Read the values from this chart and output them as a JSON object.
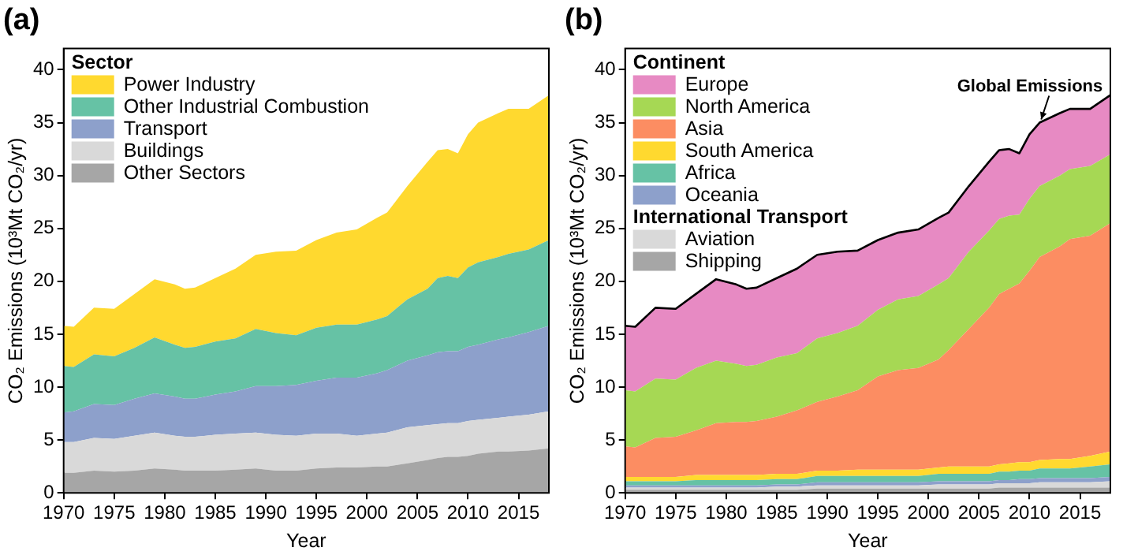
{
  "chart_data": [
    {
      "type": "area",
      "title": "(a)",
      "xlabel": "Year",
      "ylabel": "CO₂ Emissions (10³Mt CO₂/yr)",
      "legend_title": "Sector",
      "stacked": true,
      "legend": "top left",
      "grid": false,
      "x": [
        1970,
        1971,
        1973,
        1975,
        1977,
        1979,
        1981,
        1982,
        1983,
        1985,
        1987,
        1989,
        1991,
        1993,
        1995,
        1997,
        1999,
        2001,
        2002,
        2004,
        2006,
        2007,
        2008,
        2009,
        2010,
        2011,
        2013,
        2014,
        2016,
        2018
      ],
      "xlim": [
        1970,
        2018
      ],
      "xticks": [
        1970,
        1975,
        1980,
        1985,
        1990,
        1995,
        2000,
        2005,
        2010,
        2015
      ],
      "ylim": [
        0,
        42
      ],
      "yticks": [
        0,
        5,
        10,
        15,
        20,
        25,
        30,
        35,
        40
      ],
      "series": [
        {
          "name": "Other Sectors",
          "color": "#a6a6a6",
          "values": [
            1.9,
            1.9,
            2.1,
            2.0,
            2.1,
            2.3,
            2.2,
            2.1,
            2.1,
            2.1,
            2.2,
            2.3,
            2.1,
            2.1,
            2.3,
            2.4,
            2.4,
            2.5,
            2.5,
            2.8,
            3.1,
            3.3,
            3.4,
            3.4,
            3.5,
            3.7,
            3.9,
            3.9,
            4.0,
            4.2
          ]
        },
        {
          "name": "Buildings",
          "color": "#d9d9d9",
          "values": [
            2.9,
            2.9,
            3.1,
            3.1,
            3.3,
            3.4,
            3.2,
            3.2,
            3.2,
            3.4,
            3.4,
            3.4,
            3.4,
            3.3,
            3.3,
            3.2,
            3.0,
            3.1,
            3.2,
            3.4,
            3.3,
            3.2,
            3.2,
            3.2,
            3.3,
            3.2,
            3.2,
            3.3,
            3.4,
            3.5
          ]
        },
        {
          "name": "Transport",
          "color": "#8da0cb",
          "values": [
            2.8,
            2.9,
            3.2,
            3.2,
            3.5,
            3.7,
            3.7,
            3.6,
            3.6,
            3.8,
            4.0,
            4.4,
            4.6,
            4.8,
            5.0,
            5.3,
            5.5,
            5.7,
            5.9,
            6.3,
            6.6,
            6.8,
            6.8,
            6.8,
            7.0,
            7.1,
            7.4,
            7.5,
            7.8,
            8.1
          ]
        },
        {
          "name": "Other Industrial Combustion",
          "color": "#66c2a5",
          "values": [
            4.4,
            4.2,
            4.7,
            4.6,
            4.8,
            5.3,
            4.9,
            4.8,
            4.9,
            5.0,
            5.0,
            5.4,
            5.0,
            4.7,
            5.0,
            5.0,
            5.0,
            5.1,
            5.1,
            5.8,
            6.3,
            7.0,
            7.1,
            6.9,
            7.5,
            7.8,
            7.8,
            7.9,
            7.8,
            8.1
          ]
        },
        {
          "name": "Power Industry",
          "color": "#ffd92f",
          "values": [
            3.8,
            3.8,
            4.4,
            4.5,
            5.1,
            5.5,
            5.7,
            5.6,
            5.6,
            6.0,
            6.6,
            7.0,
            7.7,
            8.0,
            8.3,
            8.7,
            9.0,
            9.6,
            9.8,
            10.7,
            12.0,
            12.1,
            12.0,
            11.8,
            12.6,
            13.2,
            13.6,
            13.7,
            13.3,
            13.7
          ]
        }
      ]
    },
    {
      "type": "area",
      "title": "(b)",
      "xlabel": "Year",
      "ylabel": "CO₂ Emissions (10³Mt CO₂/yr)",
      "legend_title": "Continent",
      "stacked": true,
      "legend": "top left",
      "grid": false,
      "annotations": [
        {
          "text": "Global Emissions",
          "x": 2011,
          "y": 35.0
        },
        "International Transport"
      ],
      "x": [
        1970,
        1971,
        1973,
        1975,
        1977,
        1979,
        1981,
        1982,
        1983,
        1985,
        1987,
        1989,
        1991,
        1993,
        1995,
        1997,
        1999,
        2001,
        2002,
        2004,
        2006,
        2007,
        2008,
        2009,
        2010,
        2011,
        2013,
        2014,
        2016,
        2018
      ],
      "xlim": [
        1970,
        2018
      ],
      "xticks": [
        1970,
        1975,
        1980,
        1985,
        1990,
        1995,
        2000,
        2005,
        2010,
        2015
      ],
      "ylim": [
        0,
        42
      ],
      "yticks": [
        0,
        5,
        10,
        15,
        20,
        25,
        30,
        35,
        40
      ],
      "series": [
        {
          "name": "Shipping",
          "color": "#a6a6a6",
          "values": [
            0.3,
            0.3,
            0.3,
            0.3,
            0.3,
            0.3,
            0.3,
            0.3,
            0.3,
            0.3,
            0.3,
            0.4,
            0.4,
            0.4,
            0.4,
            0.4,
            0.4,
            0.4,
            0.4,
            0.4,
            0.4,
            0.5,
            0.5,
            0.5,
            0.5,
            0.5,
            0.5,
            0.5,
            0.5,
            0.5
          ]
        },
        {
          "name": "Aviation",
          "color": "#d9d9d9",
          "values": [
            0.2,
            0.2,
            0.2,
            0.2,
            0.2,
            0.2,
            0.2,
            0.2,
            0.2,
            0.3,
            0.3,
            0.3,
            0.3,
            0.3,
            0.3,
            0.3,
            0.3,
            0.4,
            0.4,
            0.4,
            0.4,
            0.4,
            0.4,
            0.4,
            0.4,
            0.5,
            0.5,
            0.5,
            0.5,
            0.6
          ]
        },
        {
          "name": "Oceania",
          "color": "#8da0cb",
          "values": [
            0.2,
            0.2,
            0.2,
            0.2,
            0.2,
            0.2,
            0.2,
            0.2,
            0.2,
            0.2,
            0.2,
            0.3,
            0.3,
            0.3,
            0.3,
            0.3,
            0.3,
            0.3,
            0.3,
            0.3,
            0.3,
            0.3,
            0.3,
            0.4,
            0.4,
            0.4,
            0.4,
            0.4,
            0.4,
            0.4
          ]
        },
        {
          "name": "Africa",
          "color": "#66c2a5",
          "values": [
            0.4,
            0.4,
            0.4,
            0.4,
            0.5,
            0.5,
            0.5,
            0.5,
            0.5,
            0.5,
            0.5,
            0.6,
            0.6,
            0.6,
            0.6,
            0.6,
            0.6,
            0.7,
            0.7,
            0.7,
            0.7,
            0.8,
            0.8,
            0.8,
            0.8,
            0.9,
            0.9,
            0.9,
            1.1,
            1.2
          ]
        },
        {
          "name": "South America",
          "color": "#ffd92f",
          "values": [
            0.4,
            0.4,
            0.4,
            0.4,
            0.5,
            0.5,
            0.5,
            0.5,
            0.5,
            0.5,
            0.5,
            0.5,
            0.5,
            0.6,
            0.6,
            0.6,
            0.6,
            0.6,
            0.7,
            0.7,
            0.7,
            0.7,
            0.8,
            0.8,
            0.8,
            0.8,
            0.9,
            0.9,
            1.0,
            1.2
          ]
        },
        {
          "name": "Asia",
          "color": "#fc8d62",
          "values": [
            2.9,
            2.8,
            3.7,
            3.8,
            4.2,
            4.9,
            5.0,
            5.0,
            5.1,
            5.4,
            6.0,
            6.5,
            7.0,
            7.5,
            8.8,
            9.4,
            9.6,
            10.2,
            11.0,
            13.0,
            15.0,
            16.1,
            16.5,
            16.9,
            18.1,
            19.2,
            20.1,
            20.8,
            20.8,
            21.6
          ]
        },
        {
          "name": "North America",
          "color": "#a6d854",
          "values": [
            5.3,
            5.3,
            5.6,
            5.4,
            5.9,
            5.9,
            5.5,
            5.3,
            5.3,
            5.6,
            5.4,
            6.0,
            6.0,
            6.1,
            6.3,
            6.7,
            6.8,
            7.1,
            6.8,
            7.3,
            7.3,
            7.1,
            6.9,
            6.5,
            6.8,
            6.7,
            6.7,
            6.6,
            6.6,
            6.5
          ]
        },
        {
          "name": "Europe",
          "color": "#e78ac3",
          "values": [
            6.1,
            6.1,
            6.7,
            6.7,
            7.0,
            7.7,
            7.5,
            7.3,
            7.3,
            7.5,
            8.0,
            7.9,
            7.7,
            7.1,
            6.6,
            6.3,
            6.3,
            6.3,
            6.2,
            6.2,
            6.5,
            6.5,
            6.3,
            5.8,
            6.1,
            6.0,
            5.9,
            5.7,
            5.4,
            5.6
          ]
        }
      ]
    }
  ]
}
